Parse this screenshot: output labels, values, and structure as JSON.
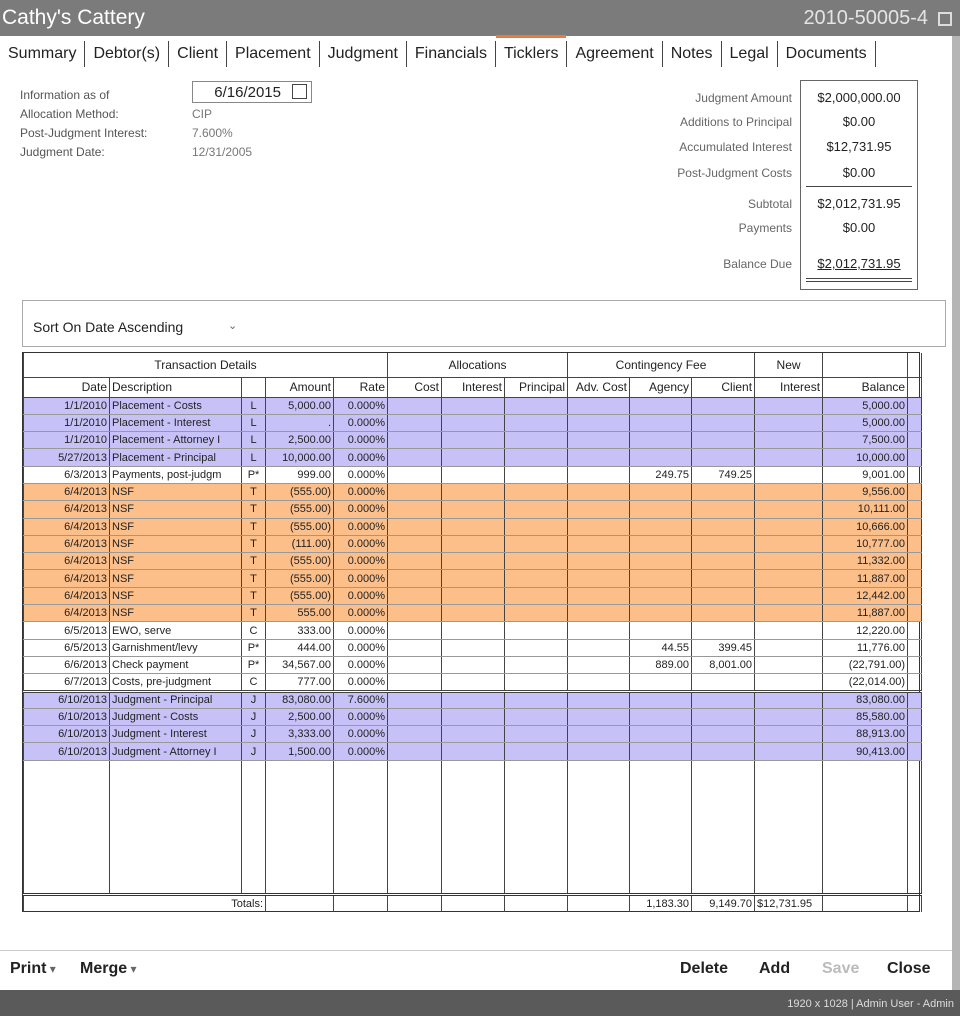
{
  "window": {
    "title": "Cathy's Cattery",
    "case_number": "2010-50005-4"
  },
  "tabs": [
    "Summary",
    "Debtor(s)",
    "Client",
    "Placement",
    "Judgment",
    "Financials",
    "Ticklers",
    "Agreement",
    "Notes",
    "Legal",
    "Documents"
  ],
  "info": [
    {
      "label": "Information as of",
      "value": "6/16/2015"
    },
    {
      "label": "Allocation Method:",
      "value": "CIP"
    },
    {
      "label": "Post-Judgment Interest:",
      "value": "7.600%"
    },
    {
      "label": "Judgment Date:",
      "value": "12/31/2005"
    }
  ],
  "summary": [
    {
      "label": "Judgment Amount",
      "value": "$2,000,000.00"
    },
    {
      "label": "Additions to Principal",
      "value": "$0.00"
    },
    {
      "label": "Accumulated Interest",
      "value": "$12,731.95"
    },
    {
      "label": "Post-Judgment Costs",
      "value": "$0.00"
    },
    {
      "label": "Subtotal",
      "value": "$2,012,731.95"
    },
    {
      "label": "Payments",
      "value": "$0.00"
    },
    {
      "label": "Balance Due",
      "value": "$2,012,731.95"
    }
  ],
  "sort": "Sort On Date Ascending",
  "grid": {
    "groups": [
      "Transaction Details",
      "Allocations",
      "Contingency Fee",
      "New"
    ],
    "columns": [
      "Date",
      "Description",
      "",
      "Amount",
      "Rate",
      "Cost",
      "Interest",
      "Principal",
      "Adv. Cost",
      "Agency",
      "Client",
      "Interest",
      "Balance"
    ],
    "rows": [
      [
        "1/1/2010",
        "Placement - Costs",
        "L",
        "5,000.00",
        "0.000%",
        null,
        null,
        null,
        null,
        null,
        null,
        null,
        "5,000.00"
      ],
      [
        "1/1/2010",
        "Placement - Interest",
        "L",
        ".",
        "0.000%",
        null,
        null,
        null,
        null,
        null,
        null,
        null,
        "5,000.00"
      ],
      [
        "1/1/2010",
        "Placement - Attorney I",
        "L",
        "2,500.00",
        "0.000%",
        null,
        null,
        null,
        null,
        null,
        null,
        null,
        "7,500.00"
      ],
      [
        "5/27/2013",
        "Placement - Principal",
        "L",
        "10,000.00",
        "0.000%",
        null,
        null,
        null,
        null,
        null,
        null,
        null,
        "10,000.00"
      ],
      [
        "6/3/2013",
        "Payments, post-judgm",
        "P*",
        "999.00",
        "0.000%",
        null,
        null,
        null,
        null,
        "249.75",
        "749.25",
        null,
        "9,001.00"
      ],
      [
        "6/4/2013",
        "NSF",
        "T",
        "(555.00)",
        "0.000%",
        null,
        null,
        null,
        null,
        null,
        null,
        null,
        "9,556.00"
      ],
      [
        "6/4/2013",
        "NSF",
        "T",
        "(555.00)",
        "0.000%",
        null,
        null,
        null,
        null,
        null,
        null,
        null,
        "10,111.00"
      ],
      [
        "6/4/2013",
        "NSF",
        "T",
        "(555.00)",
        "0.000%",
        null,
        null,
        null,
        null,
        null,
        null,
        null,
        "10,666.00"
      ],
      [
        "6/4/2013",
        "NSF",
        "T",
        "(111.00)",
        "0.000%",
        null,
        null,
        null,
        null,
        null,
        null,
        null,
        "10,777.00"
      ],
      [
        "6/4/2013",
        "NSF",
        "T",
        "(555.00)",
        "0.000%",
        null,
        null,
        null,
        null,
        null,
        null,
        null,
        "11,332.00"
      ],
      [
        "6/4/2013",
        "NSF",
        "T",
        "(555.00)",
        "0.000%",
        null,
        null,
        null,
        null,
        null,
        null,
        null,
        "11,887.00"
      ],
      [
        "6/4/2013",
        "NSF",
        "T",
        "(555.00)",
        "0.000%",
        null,
        null,
        null,
        null,
        null,
        null,
        null,
        "12,442.00"
      ],
      [
        "6/4/2013",
        "NSF",
        "T",
        "555.00",
        "0.000%",
        null,
        null,
        null,
        null,
        null,
        null,
        null,
        "11,887.00"
      ],
      [
        "6/5/2013",
        "EWO, serve",
        "C",
        "333.00",
        "0.000%",
        null,
        null,
        null,
        null,
        null,
        null,
        null,
        "12,220.00"
      ],
      [
        "6/5/2013",
        "Garnishment/levy",
        "P*",
        "444.00",
        "0.000%",
        null,
        null,
        null,
        null,
        "44.55",
        "399.45",
        null,
        "11,776.00"
      ],
      [
        "6/6/2013",
        "Check payment",
        "P*",
        "34,567.00",
        "0.000%",
        null,
        null,
        null,
        null,
        "889.00",
        "8,001.00",
        null,
        "(22,791.00)"
      ],
      [
        "6/7/2013",
        "Costs, pre-judgment",
        "C",
        "777.00",
        "0.000%",
        null,
        null,
        null,
        null,
        null,
        null,
        null,
        "(22,014.00)"
      ],
      [
        "6/10/2013",
        "Judgment - Principal",
        "J",
        "83,080.00",
        "7.600%",
        null,
        null,
        null,
        null,
        null,
        null,
        null,
        "83,080.00"
      ],
      [
        "6/10/2013",
        "Judgment - Costs",
        "J",
        "2,500.00",
        "0.000%",
        null,
        null,
        null,
        null,
        null,
        null,
        null,
        "85,580.00"
      ],
      [
        "6/10/2013",
        "Judgment - Interest",
        "J",
        "3,333.00",
        "0.000%",
        null,
        null,
        null,
        null,
        null,
        null,
        null,
        "88,913.00"
      ],
      [
        "6/10/2013",
        "Judgment - Attorney I",
        "J",
        "1,500.00",
        "0.000%",
        null,
        null,
        null,
        null,
        null,
        null,
        null,
        "90,413.00"
      ]
    ],
    "totals": {
      "label": "Totals:",
      "agency": "1,183.30",
      "client": "9,149.70",
      "new_interest": "$12,731.95"
    }
  },
  "toolbar": {
    "left": [
      "Print",
      "Merge"
    ],
    "right": [
      "Delete",
      "Add",
      "Save",
      "Close"
    ]
  },
  "status": "1920 x 1028  |  Admin User - Admin"
}
